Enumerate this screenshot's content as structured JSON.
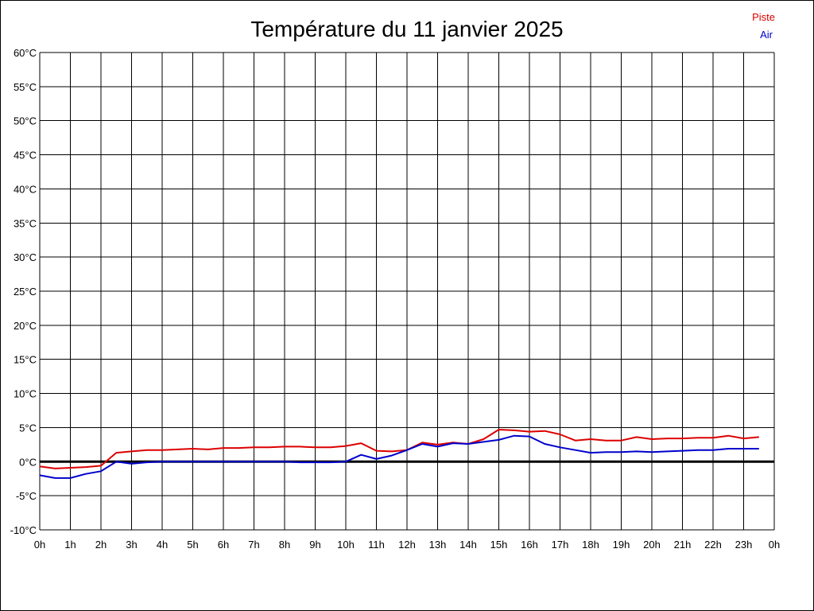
{
  "chart_data": {
    "type": "line",
    "title": "Température du 11 janvier 2025",
    "x_tick_labels": [
      "0h",
      "1h",
      "2h",
      "3h",
      "4h",
      "5h",
      "6h",
      "7h",
      "8h",
      "9h",
      "10h",
      "11h",
      "12h",
      "13h",
      "14h",
      "15h",
      "16h",
      "17h",
      "18h",
      "19h",
      "20h",
      "21h",
      "22h",
      "23h",
      "0h"
    ],
    "y_tick_labels": [
      "60°C",
      "55°C",
      "50°C",
      "45°C",
      "40°C",
      "35°C",
      "30°C",
      "25°C",
      "20°C",
      "15°C",
      "10°C",
      "5°C",
      "0°C",
      "-5°C",
      "-10°C"
    ],
    "xlim": [
      0,
      24
    ],
    "ylim": [
      -10,
      60
    ],
    "y_step": 5,
    "grid": true,
    "legend_position": "top-right",
    "zero_line": true,
    "series": [
      {
        "name": "Piste",
        "color": "#dd0000",
        "x": [
          0,
          0.5,
          1,
          1.5,
          2,
          2.5,
          3,
          3.5,
          4,
          4.5,
          5,
          5.5,
          6,
          6.5,
          7,
          7.5,
          8,
          8.5,
          9,
          9.5,
          10,
          10.5,
          11,
          11.5,
          12,
          12.5,
          13,
          13.5,
          14,
          14.5,
          15,
          15.5,
          16,
          16.5,
          17,
          17.5,
          18,
          18.5,
          19,
          19.5,
          20,
          20.5,
          21,
          21.5,
          22,
          22.5,
          23,
          23.5
        ],
        "values": [
          -0.7,
          -1.0,
          -0.9,
          -0.8,
          -0.6,
          1.3,
          1.5,
          1.7,
          1.7,
          1.8,
          1.9,
          1.8,
          2.0,
          2.0,
          2.1,
          2.1,
          2.2,
          2.2,
          2.1,
          2.1,
          2.3,
          2.7,
          1.6,
          1.5,
          1.7,
          2.8,
          2.5,
          2.8,
          2.6,
          3.3,
          4.7,
          4.6,
          4.4,
          4.5,
          4.0,
          3.1,
          3.3,
          3.1,
          3.1,
          3.6,
          3.3,
          3.4,
          3.4,
          3.5,
          3.5,
          3.8,
          3.4,
          3.6
        ]
      },
      {
        "name": "Air",
        "color": "#0000cc",
        "x": [
          0,
          0.5,
          1,
          1.5,
          2,
          2.5,
          3,
          3.5,
          4,
          4.5,
          5,
          5.5,
          6,
          6.5,
          7,
          7.5,
          8,
          8.5,
          9,
          9.5,
          10,
          10.5,
          11,
          11.5,
          12,
          12.5,
          13,
          13.5,
          14,
          14.5,
          15,
          15.5,
          16,
          16.5,
          17,
          17.5,
          18,
          18.5,
          19,
          19.5,
          20,
          20.5,
          21,
          21.5,
          22,
          22.5,
          23,
          23.5
        ],
        "values": [
          -2.0,
          -2.4,
          -2.4,
          -1.8,
          -1.4,
          0.0,
          -0.3,
          -0.1,
          0.0,
          0.0,
          0.0,
          0.0,
          0.0,
          0.0,
          0.0,
          0.0,
          0.0,
          -0.1,
          -0.1,
          -0.1,
          0.0,
          1.0,
          0.4,
          0.9,
          1.7,
          2.6,
          2.2,
          2.7,
          2.6,
          2.9,
          3.2,
          3.8,
          3.7,
          2.6,
          2.1,
          1.7,
          1.3,
          1.4,
          1.4,
          1.5,
          1.4,
          1.5,
          1.6,
          1.7,
          1.7,
          1.9,
          1.9,
          1.9
        ]
      }
    ]
  }
}
